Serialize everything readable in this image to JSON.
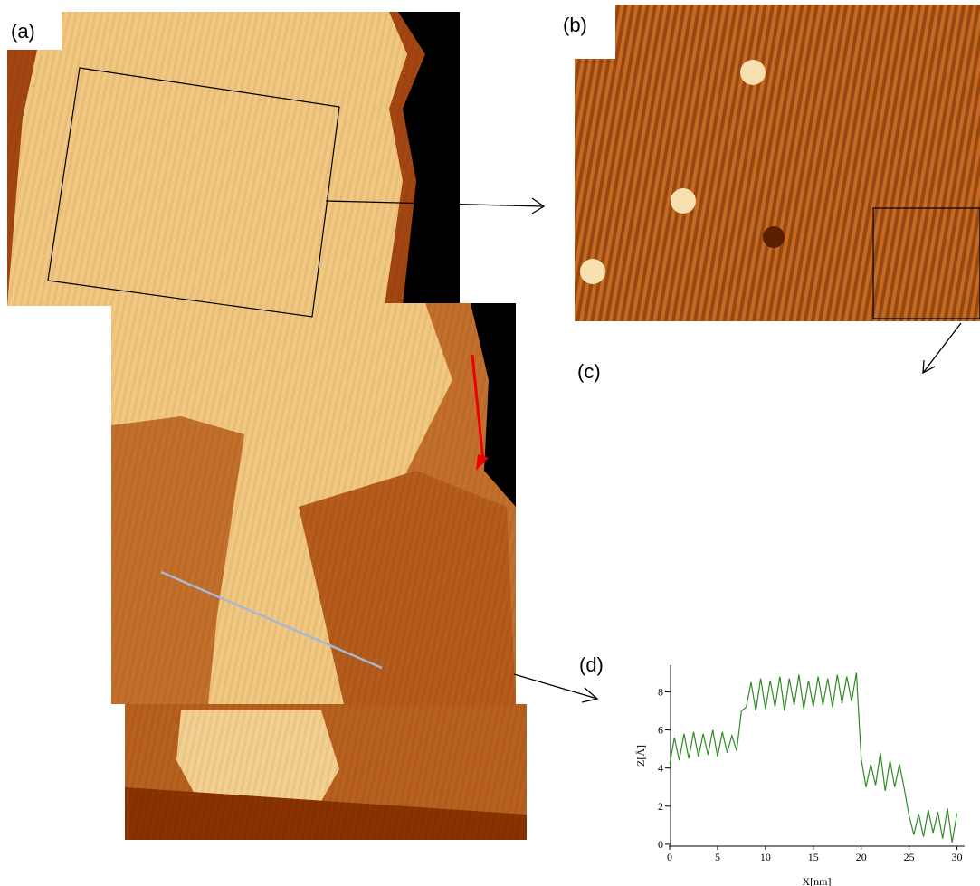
{
  "panel_labels": [
    "(a)",
    "(b)",
    "(c)",
    "(d)"
  ],
  "chart_data": {
    "type": "line",
    "x_label": "X[nm]",
    "y_label": "Z[Å]",
    "xlim": [
      -0.1,
      30.8
    ],
    "ylim": [
      -0.1,
      9.4
    ],
    "xticks": [
      0,
      5,
      10,
      15,
      20,
      25,
      30
    ],
    "yticks": [
      0,
      2,
      4,
      6,
      8
    ],
    "x": [
      0,
      0.5,
      1,
      1.5,
      2,
      2.5,
      3,
      3.5,
      4,
      4.5,
      5,
      5.5,
      6,
      6.5,
      7,
      7.5,
      8,
      8.5,
      9,
      9.5,
      10,
      10.5,
      11,
      11.5,
      12,
      12.5,
      13,
      13.5,
      14,
      14.5,
      15,
      15.5,
      16,
      16.5,
      17,
      17.5,
      18,
      18.5,
      19,
      19.5,
      20,
      20.5,
      21,
      21.5,
      22,
      22.5,
      23,
      23.5,
      24,
      24.5,
      25,
      25.5,
      26,
      26.5,
      27,
      27.5,
      28,
      28.5,
      29,
      29.5,
      30
    ],
    "series": [
      {
        "color": "#2e8b22",
        "values": [
          4.2,
          5.6,
          4.4,
          5.8,
          4.5,
          5.9,
          4.6,
          5.8,
          4.7,
          6.0,
          4.6,
          5.9,
          4.8,
          5.7,
          4.9,
          7.0,
          7.2,
          8.5,
          7.0,
          8.7,
          7.1,
          8.6,
          7.2,
          8.8,
          7.0,
          8.7,
          7.3,
          8.9,
          7.1,
          8.6,
          7.2,
          8.8,
          7.3,
          8.7,
          7.2,
          8.9,
          7.4,
          8.8,
          7.5,
          9.0,
          4.5,
          3.0,
          4.2,
          3.1,
          4.8,
          2.8,
          4.4,
          3.0,
          4.2,
          2.9,
          1.5,
          0.5,
          1.6,
          0.4,
          1.8,
          0.6,
          1.7,
          0.3,
          1.9,
          0.1,
          1.6
        ]
      }
    ]
  }
}
